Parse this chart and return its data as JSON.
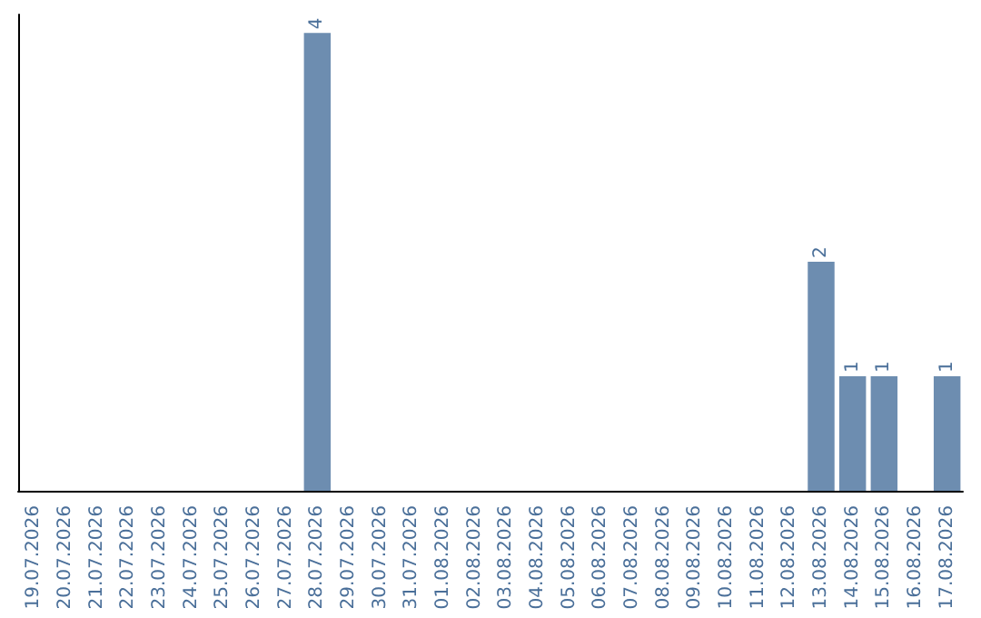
{
  "chart_data": {
    "type": "bar",
    "categories": [
      "19.07.2026",
      "20.07.2026",
      "21.07.2026",
      "22.07.2026",
      "23.07.2026",
      "24.07.2026",
      "25.07.2026",
      "26.07.2026",
      "27.07.2026",
      "28.07.2026",
      "29.07.2026",
      "30.07.2026",
      "31.07.2026",
      "01.08.2026",
      "02.08.2026",
      "03.08.2026",
      "04.08.2026",
      "05.08.2026",
      "06.08.2026",
      "07.08.2026",
      "08.08.2026",
      "09.08.2026",
      "10.08.2026",
      "11.08.2026",
      "12.08.2026",
      "13.08.2026",
      "14.08.2026",
      "15.08.2026",
      "16.08.2026",
      "17.08.2026"
    ],
    "values": [
      0,
      0,
      0,
      0,
      0,
      0,
      0,
      0,
      0,
      4,
      0,
      0,
      0,
      0,
      0,
      0,
      0,
      0,
      0,
      0,
      0,
      0,
      0,
      0,
      0,
      2,
      1,
      1,
      0,
      1
    ],
    "value_labels": [
      null,
      null,
      null,
      null,
      null,
      null,
      null,
      null,
      null,
      "4",
      null,
      null,
      null,
      null,
      null,
      null,
      null,
      null,
      null,
      null,
      null,
      null,
      null,
      null,
      null,
      "2",
      "1",
      "1",
      null,
      "1"
    ],
    "color": "#6d8db0",
    "grid": false,
    "tick_labels": "x"
  }
}
